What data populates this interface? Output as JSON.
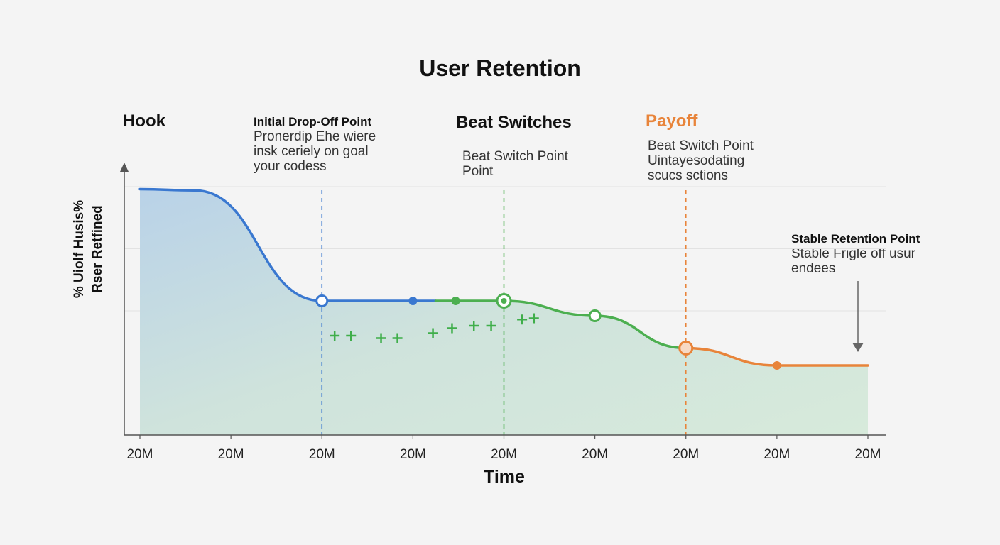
{
  "chart_data": {
    "type": "line",
    "title": "User Retention",
    "xlabel": "Time",
    "ylabel": [
      "% Uiolf Husis%",
      "Rser Retfined"
    ],
    "x_tick_labels": [
      "20M",
      "20M",
      "20M",
      "20M",
      "20M",
      "20M",
      "20M",
      "20M",
      "20M"
    ],
    "grid": true,
    "y_range": [
      0,
      100
    ],
    "series": [
      {
        "color": "#3a78d0",
        "points": [
          [
            0,
            99
          ],
          [
            0.6,
            98.5
          ],
          [
            2,
            54
          ],
          [
            3,
            54
          ],
          [
            3.25,
            54
          ]
        ]
      },
      {
        "color": "#4caf50",
        "points": [
          [
            3.25,
            54
          ],
          [
            3.5,
            54
          ],
          [
            4,
            54
          ],
          [
            5,
            48
          ],
          [
            6,
            35
          ]
        ]
      },
      {
        "color": "#e8843a",
        "points": [
          [
            6,
            35
          ],
          [
            7,
            28
          ],
          [
            8,
            28
          ]
        ]
      }
    ],
    "markers": [
      {
        "x": 2,
        "y": 54,
        "style": "open",
        "color": "#3a78d0"
      },
      {
        "x": 3,
        "y": 54,
        "style": "filled",
        "color": "#3a78d0"
      },
      {
        "x": 3.47,
        "y": 54,
        "style": "filled",
        "color": "#4caf50"
      },
      {
        "x": 4,
        "y": 54,
        "style": "ring-dot",
        "color": "#4caf50"
      },
      {
        "x": 5,
        "y": 48,
        "style": "open",
        "color": "#4caf50"
      },
      {
        "x": 6,
        "y": 35,
        "style": "ring",
        "color": "#e8843a"
      },
      {
        "x": 7,
        "y": 28,
        "style": "filled",
        "color": "#e8843a"
      }
    ],
    "plus_marks": [
      [
        2.14,
        40
      ],
      [
        2.32,
        40
      ],
      [
        2.65,
        39
      ],
      [
        2.83,
        39
      ],
      [
        3.22,
        41
      ],
      [
        3.43,
        43
      ],
      [
        3.67,
        44
      ],
      [
        3.86,
        44
      ],
      [
        4.2,
        46.5
      ],
      [
        4.33,
        47
      ]
    ],
    "vlines": [
      {
        "x": 2,
        "color": "#3a78d0"
      },
      {
        "x": 4,
        "color": "#4caf50"
      },
      {
        "x": 6,
        "color": "#e8843a"
      }
    ],
    "phases": [
      {
        "label": "Hook",
        "color": "#111111"
      },
      {
        "label": "Beat Switches",
        "color": "#111111"
      },
      {
        "label": "Payoff",
        "color": "#e8843a"
      }
    ],
    "annotations": [
      {
        "heading": "Initial Drop-Off Point",
        "lines": [
          "Pronerdip Ehe wiere",
          "insk ceriely on goal",
          "your codess"
        ]
      },
      {
        "heading": "",
        "lines": [
          "Beat Switch Point",
          "Point"
        ]
      },
      {
        "heading": "",
        "lines": [
          "Beat Switch Point",
          "Uintayesodating",
          "scucs sctions"
        ]
      },
      {
        "heading": "Stable Retention Point",
        "lines": [
          "Stable Frigle off usur",
          "endees"
        ]
      }
    ]
  }
}
